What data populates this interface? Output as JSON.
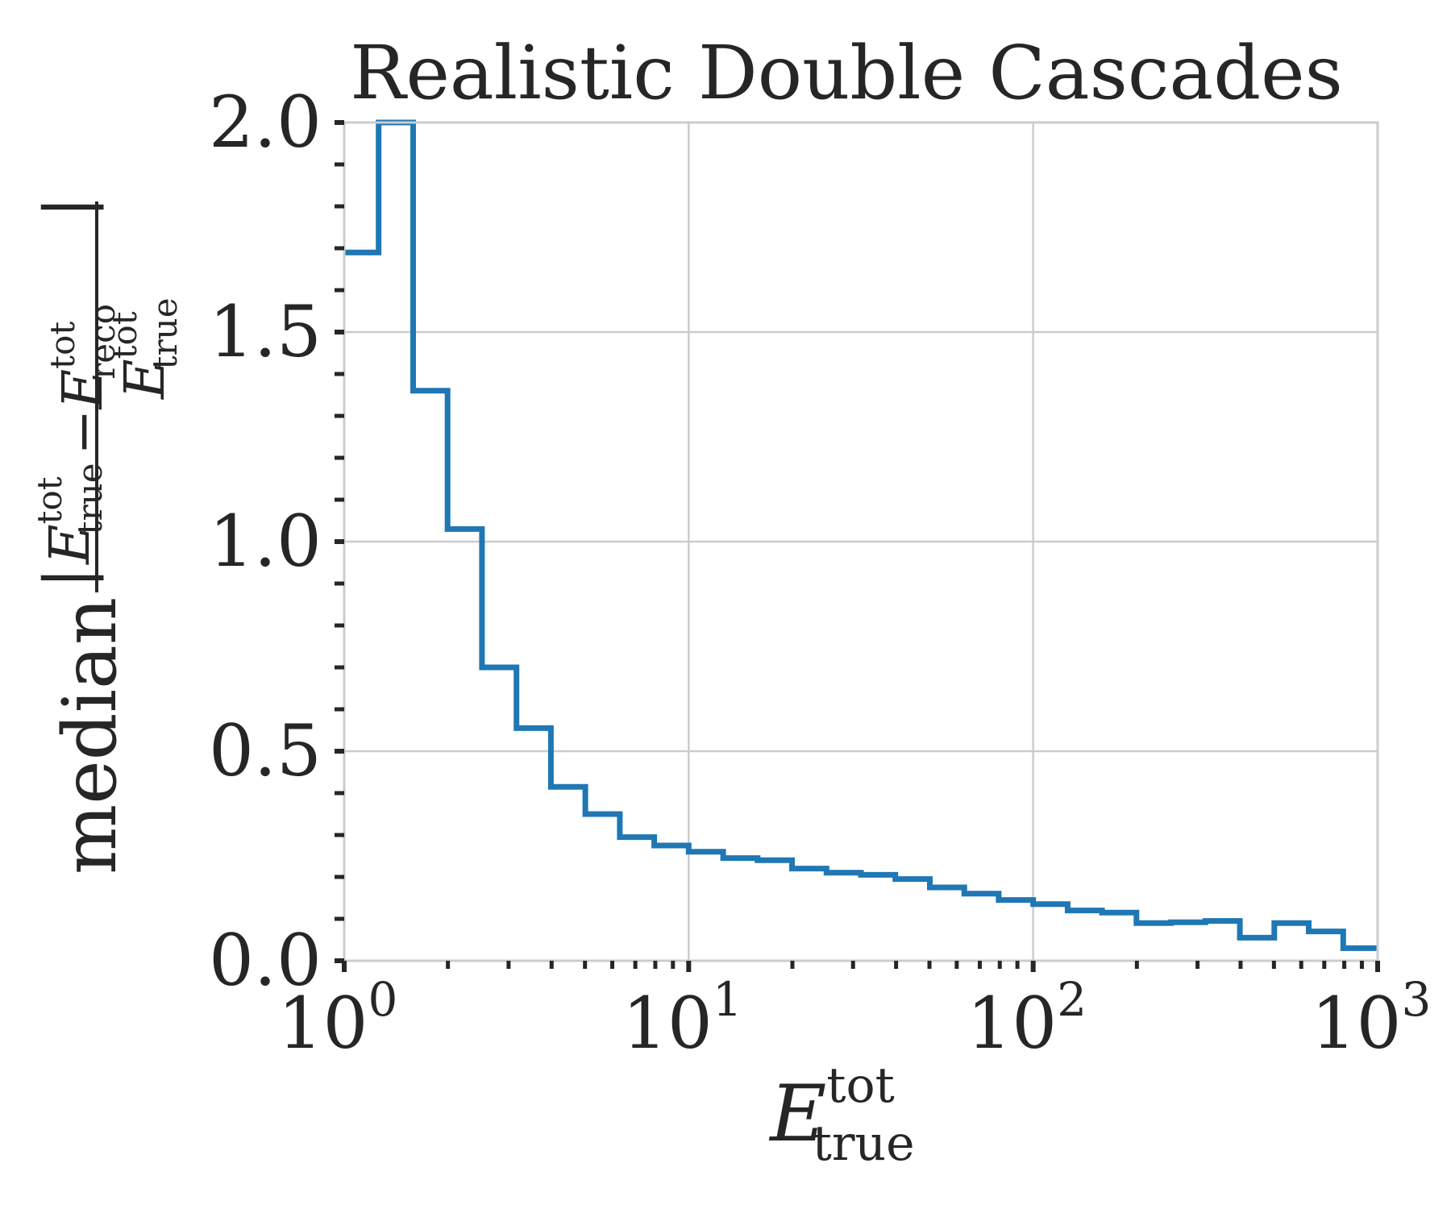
{
  "chart_data": {
    "type": "line",
    "step": true,
    "title": "Realistic Double Cascades",
    "xlabel": {
      "base": "E",
      "sup": "tot",
      "sub": "true"
    },
    "ylabel": {
      "prefix": "median",
      "abs_open": "|",
      "abs_close": "|",
      "numerator": [
        {
          "base": "E",
          "sup": "tot",
          "sub": "true"
        },
        {
          "text": "−"
        },
        {
          "base": "E",
          "sup": "tot",
          "sub": "reco"
        }
      ],
      "denominator": {
        "base": "E",
        "sup": "tot",
        "sub": "true"
      }
    },
    "xscale": "log",
    "xlim": [
      1,
      1000
    ],
    "ylim": [
      0,
      2.0
    ],
    "grid": true,
    "xticks": [
      {
        "value": 1,
        "base": "10",
        "exp": "0"
      },
      {
        "value": 10,
        "base": "10",
        "exp": "1"
      },
      {
        "value": 100,
        "base": "10",
        "exp": "2"
      },
      {
        "value": 1000,
        "base": "10",
        "exp": "3"
      }
    ],
    "yticks": [
      {
        "value": 0.0,
        "label": "0.0"
      },
      {
        "value": 0.5,
        "label": "0.5"
      },
      {
        "value": 1.0,
        "label": "1.0"
      },
      {
        "value": 1.5,
        "label": "1.5"
      },
      {
        "value": 2.0,
        "label": "2.0"
      }
    ],
    "bin_edges": [
      1.0,
      1.259,
      1.585,
      1.995,
      2.512,
      3.162,
      3.981,
      5.012,
      6.31,
      7.943,
      10.0,
      12.59,
      15.85,
      19.95,
      25.12,
      31.62,
      39.81,
      50.12,
      63.1,
      79.43,
      100.0,
      125.9,
      158.5,
      199.5,
      251.2,
      316.2,
      398.1,
      501.2,
      631.0,
      794.3,
      1000.0
    ],
    "series": [
      {
        "color": "#1f77b4",
        "values": [
          1.69,
          2.0,
          1.36,
          1.03,
          0.7,
          0.555,
          0.415,
          0.35,
          0.295,
          0.275,
          0.26,
          0.245,
          0.24,
          0.22,
          0.21,
          0.205,
          0.195,
          0.175,
          0.16,
          0.145,
          0.135,
          0.12,
          0.115,
          0.09,
          0.092,
          0.095,
          0.055,
          0.09,
          0.07,
          0.03
        ]
      }
    ]
  }
}
